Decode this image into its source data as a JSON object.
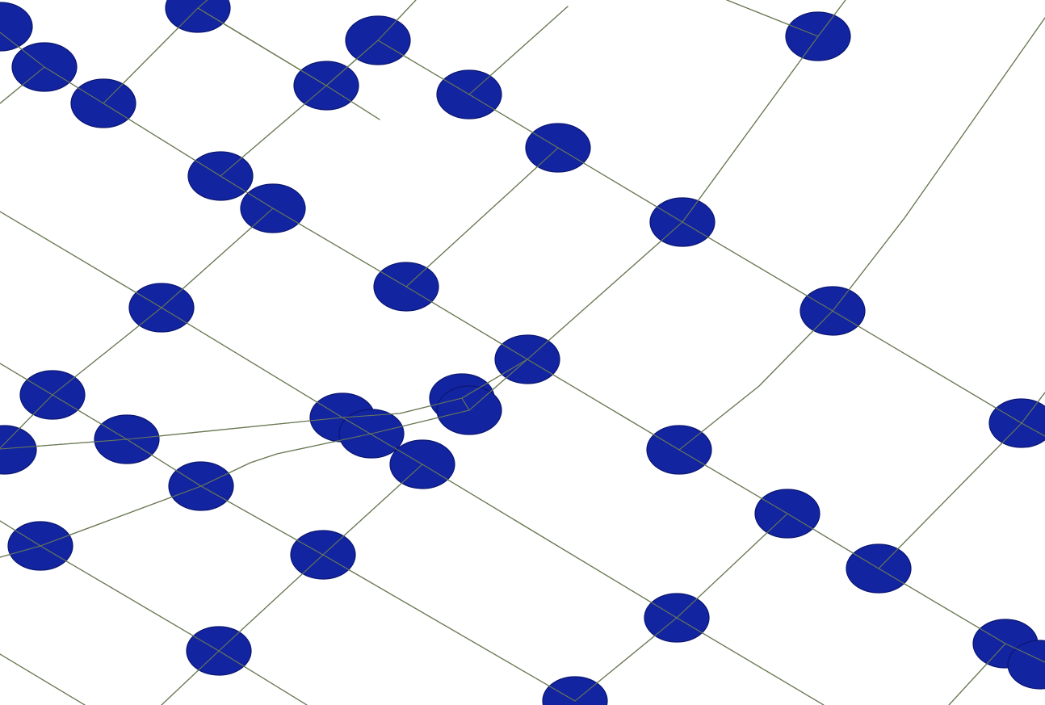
{
  "map": {
    "background_color": "#ffffff",
    "road_color": "#6b7a55",
    "node_fill_color": "#1224a0",
    "node_stroke_color": "#0b1670",
    "node_count": 41
  }
}
